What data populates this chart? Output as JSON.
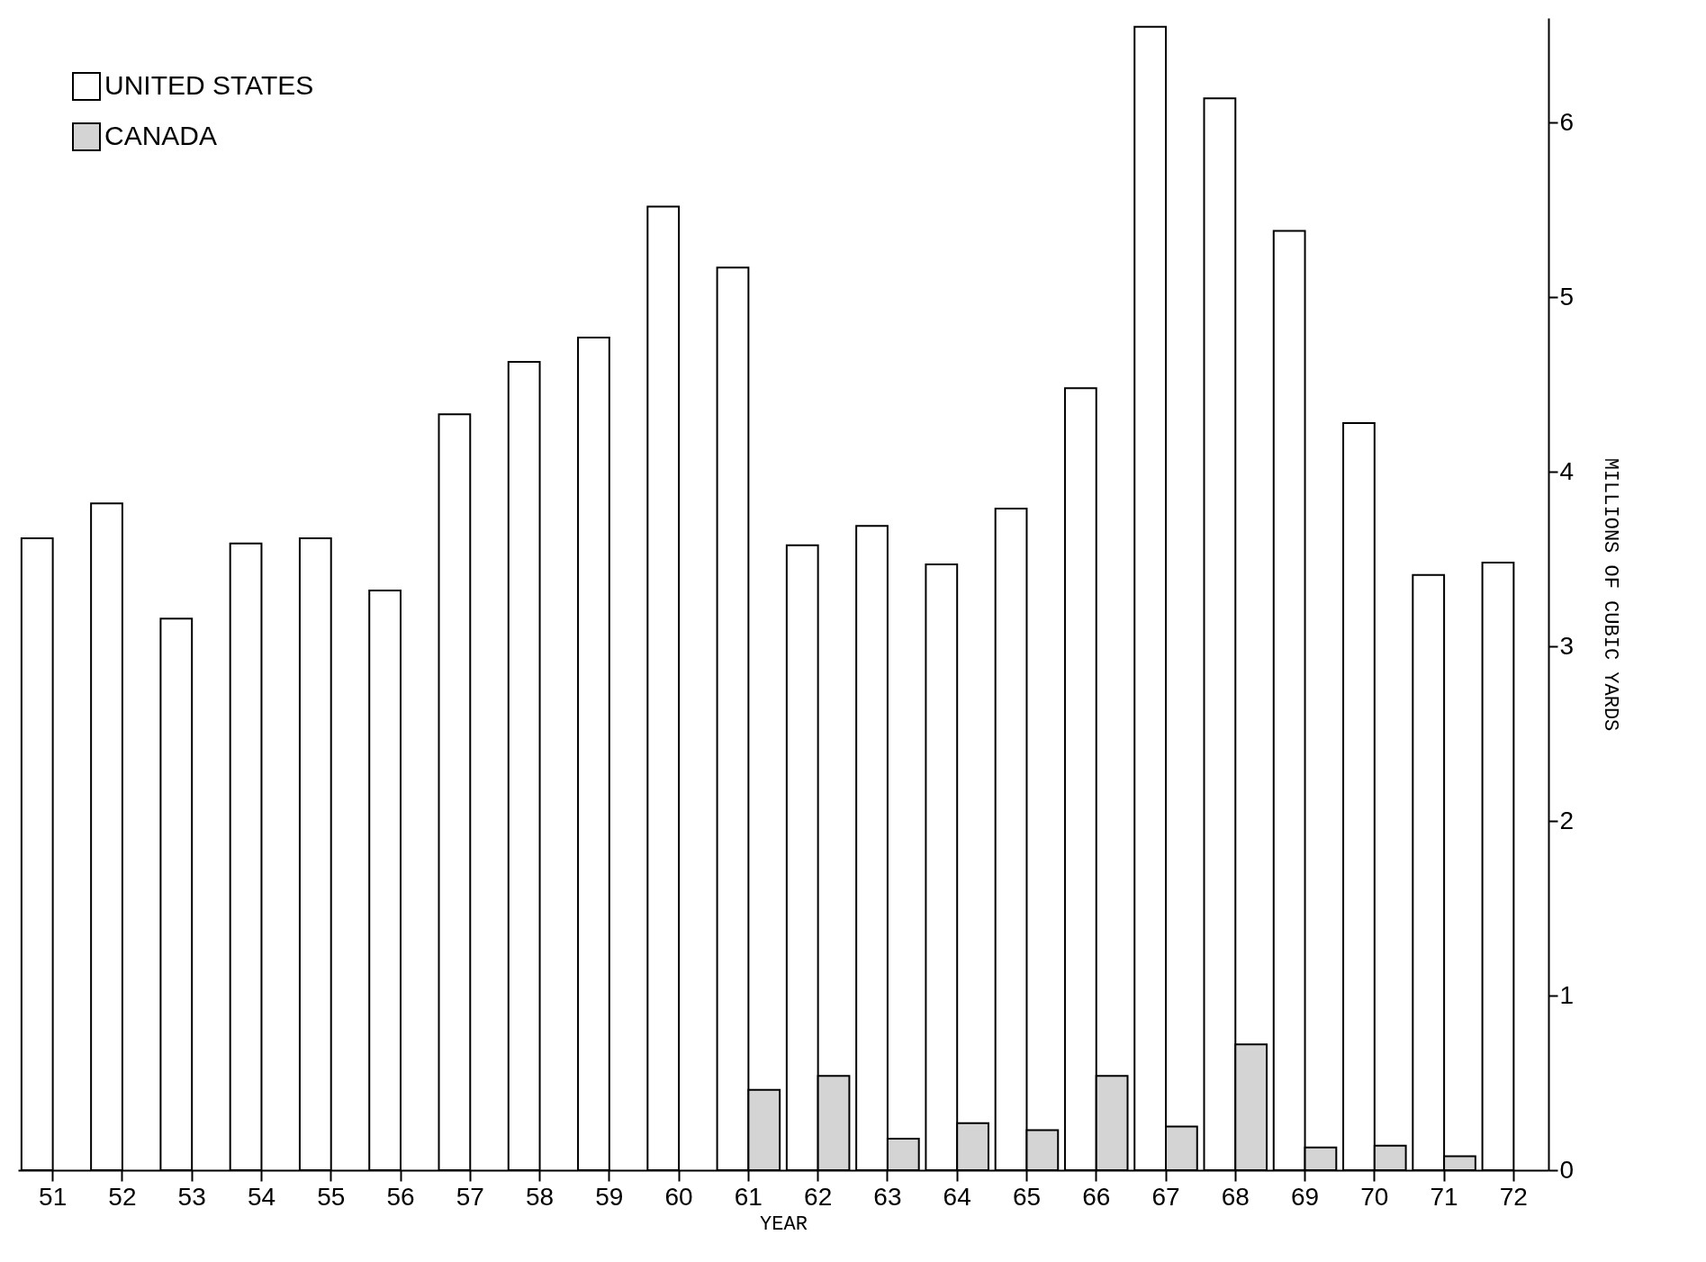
{
  "chart_data": {
    "type": "bar",
    "xlabel": "YEAR",
    "ylabel": "MILLIONS OF CUBIC YARDS",
    "categories": [
      "51",
      "52",
      "53",
      "54",
      "55",
      "56",
      "57",
      "58",
      "59",
      "60",
      "61",
      "62",
      "63",
      "64",
      "65",
      "66",
      "67",
      "68",
      "69",
      "70",
      "71",
      "72"
    ],
    "series": [
      {
        "name": "UNITED STATES",
        "color": "#ffffff",
        "values": [
          3.62,
          3.82,
          3.16,
          3.59,
          3.62,
          3.32,
          4.33,
          4.63,
          4.77,
          5.52,
          5.17,
          3.58,
          3.69,
          3.47,
          3.79,
          4.48,
          6.55,
          6.14,
          5.38,
          4.28,
          3.41,
          3.48
        ]
      },
      {
        "name": "CANADA",
        "color": "#d4d4d4",
        "values": [
          null,
          null,
          null,
          null,
          null,
          null,
          null,
          null,
          null,
          null,
          0.46,
          0.54,
          0.18,
          0.27,
          0.23,
          0.54,
          0.25,
          0.72,
          0.13,
          0.14,
          0.08,
          null
        ]
      }
    ],
    "ylim": [
      0,
      6.6
    ],
    "yticks": [
      0,
      1,
      2,
      3,
      4,
      5,
      6
    ],
    "grid": false,
    "legend": "top left"
  }
}
